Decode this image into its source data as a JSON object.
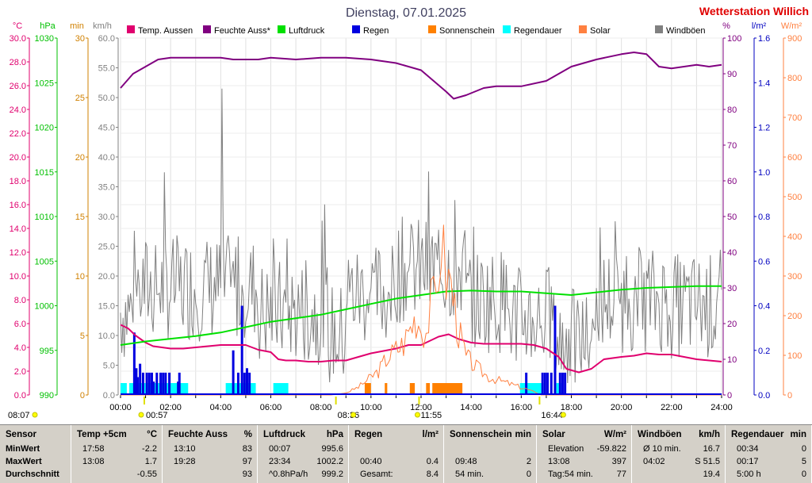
{
  "title": "Dienstag, 07.01.2025",
  "station": "Wetterstation Willich",
  "axes": {
    "left": [
      {
        "unit": "°C",
        "color": "#e0006e",
        "ticks": [
          "0.0",
          "2.0",
          "4.0",
          "6.0",
          "8.0",
          "10.0",
          "12.0",
          "14.0",
          "16.0",
          "18.0",
          "20.0",
          "22.0",
          "24.0",
          "26.0",
          "28.0",
          "30.0"
        ]
      },
      {
        "unit": "hPa",
        "color": "#00c000",
        "ticks": [
          "990",
          "995",
          "1000",
          "1005",
          "1010",
          "1015",
          "1020",
          "1025",
          "1030"
        ]
      },
      {
        "unit": "min",
        "color": "#d08000",
        "ticks": [
          "0",
          "5",
          "10",
          "15",
          "20",
          "25",
          "30"
        ]
      },
      {
        "unit": "km/h",
        "color": "#808080",
        "ticks": [
          "0.0",
          "5.0",
          "10.0",
          "15.0",
          "20.0",
          "25.0",
          "30.0",
          "35.0",
          "40.0",
          "45.0",
          "50.0",
          "55.0",
          "60.0"
        ]
      }
    ],
    "right": [
      {
        "unit": "%",
        "color": "#800080",
        "ticks": [
          "0",
          "10",
          "20",
          "30",
          "40",
          "50",
          "60",
          "70",
          "80",
          "90",
          "100"
        ]
      },
      {
        "unit": "l/m²",
        "color": "#0000c0",
        "ticks": [
          "0.0",
          "0.2",
          "0.4",
          "0.6",
          "0.8",
          "1.0",
          "1.2",
          "1.4",
          "1.6"
        ]
      },
      {
        "unit": "W/m²",
        "color": "#ff8040",
        "ticks": [
          "0",
          "100",
          "200",
          "300",
          "400",
          "500",
          "600",
          "700",
          "800",
          "900"
        ]
      }
    ],
    "x_ticks": [
      "00:00",
      "02:00",
      "04:00",
      "06:00",
      "08:00",
      "10:00",
      "12:00",
      "14:00",
      "16:00",
      "18:00",
      "20:00",
      "22:00",
      "24:00"
    ]
  },
  "legend": [
    {
      "label": "Temp. Aussen",
      "color": "#e0006e"
    },
    {
      "label": "Feuchte Auss*",
      "color": "#800080"
    },
    {
      "label": "Luftdruck",
      "color": "#00e000"
    },
    {
      "label": "Regen",
      "color": "#0000e0"
    },
    {
      "label": "Sonnenschein",
      "color": "#ff8000"
    },
    {
      "label": "Regendauer",
      "color": "#00ffff"
    },
    {
      "label": "Solar",
      "color": "#ff8040"
    },
    {
      "label": "Windböen",
      "color": "#808080"
    }
  ],
  "markers": [
    {
      "time": "08:07",
      "hour": -0.3
    },
    {
      "time": "00:57",
      "hour": 0.95
    },
    {
      "time": "08:36",
      "hour": 8.6
    },
    {
      "time": "11:55",
      "hour": 11.92
    },
    {
      "time": "16:44",
      "hour": 16.73
    }
  ],
  "chart_data": {
    "type": "line",
    "x_range_hours": [
      0,
      24
    ],
    "series": [
      {
        "name": "Temp. Aussen",
        "axis": "°C",
        "ylim": [
          0,
          30
        ],
        "points": [
          [
            0,
            5.9
          ],
          [
            0.3,
            5.6
          ],
          [
            0.6,
            5.0
          ],
          [
            1,
            4.4
          ],
          [
            1.3,
            4.1
          ],
          [
            2,
            3.9
          ],
          [
            2.5,
            3.9
          ],
          [
            3,
            4.0
          ],
          [
            3.5,
            4.1
          ],
          [
            4,
            4.2
          ],
          [
            4.5,
            4.2
          ],
          [
            5,
            4.2
          ],
          [
            5.5,
            3.8
          ],
          [
            6,
            3.6
          ],
          [
            6.3,
            3.0
          ],
          [
            6.6,
            2.9
          ],
          [
            7,
            2.9
          ],
          [
            7.5,
            2.8
          ],
          [
            8,
            2.8
          ],
          [
            8.5,
            2.9
          ],
          [
            9,
            2.9
          ],
          [
            9.5,
            3.2
          ],
          [
            10,
            3.5
          ],
          [
            10.5,
            3.7
          ],
          [
            11,
            3.9
          ],
          [
            11.5,
            4.2
          ],
          [
            12,
            4.2
          ],
          [
            12.3,
            4.5
          ],
          [
            12.7,
            4.9
          ],
          [
            13.1,
            5.1
          ],
          [
            13.5,
            4.7
          ],
          [
            14,
            4.4
          ],
          [
            14.5,
            4.3
          ],
          [
            15,
            4.3
          ],
          [
            15.5,
            4.3
          ],
          [
            16,
            4.3
          ],
          [
            16.5,
            4.2
          ],
          [
            17,
            3.9
          ],
          [
            17.5,
            3.2
          ],
          [
            17.8,
            2.2
          ],
          [
            18.3,
            1.9
          ],
          [
            18.8,
            2.2
          ],
          [
            19.3,
            3.0
          ],
          [
            20,
            3.2
          ],
          [
            20.5,
            3.3
          ],
          [
            21,
            3.5
          ],
          [
            21.5,
            3.4
          ],
          [
            22,
            3.4
          ],
          [
            22.5,
            3.2
          ],
          [
            23,
            3.0
          ],
          [
            23.5,
            2.9
          ],
          [
            24,
            2.8
          ]
        ]
      },
      {
        "name": "Feuchte Auss*",
        "axis": "%",
        "ylim": [
          0,
          100
        ],
        "points": [
          [
            0,
            86
          ],
          [
            0.5,
            90
          ],
          [
            1,
            92
          ],
          [
            1.5,
            94
          ],
          [
            2,
            94.5
          ],
          [
            3,
            94.5
          ],
          [
            4,
            94.5
          ],
          [
            4.5,
            94
          ],
          [
            5,
            94
          ],
          [
            5.5,
            94
          ],
          [
            6,
            94.5
          ],
          [
            7,
            94
          ],
          [
            8,
            94.5
          ],
          [
            9,
            94.5
          ],
          [
            10,
            94
          ],
          [
            11,
            93
          ],
          [
            12,
            91
          ],
          [
            12.5,
            88
          ],
          [
            13,
            85
          ],
          [
            13.3,
            83
          ],
          [
            13.8,
            84
          ],
          [
            14.5,
            86
          ],
          [
            15,
            86.5
          ],
          [
            16,
            86.5
          ],
          [
            17,
            88
          ],
          [
            17.5,
            90
          ],
          [
            18,
            92
          ],
          [
            19,
            94
          ],
          [
            20,
            95.5
          ],
          [
            20.5,
            96
          ],
          [
            21,
            95.5
          ],
          [
            21.5,
            92
          ],
          [
            22,
            91.5
          ],
          [
            22.5,
            92
          ],
          [
            23,
            92.5
          ],
          [
            23.5,
            92
          ],
          [
            24,
            92.5
          ]
        ]
      },
      {
        "name": "Luftdruck",
        "axis": "hPa",
        "ylim": [
          990,
          1030
        ],
        "points": [
          [
            0,
            995.6
          ],
          [
            0.5,
            995.8
          ],
          [
            1,
            996.0
          ],
          [
            2,
            996.3
          ],
          [
            3,
            996.6
          ],
          [
            4,
            997.0
          ],
          [
            5,
            997.6
          ],
          [
            6,
            998.2
          ],
          [
            7,
            998.6
          ],
          [
            8,
            999.0
          ],
          [
            9,
            999.6
          ],
          [
            10,
            1000.2
          ],
          [
            11,
            1000.8
          ],
          [
            12,
            1001.2
          ],
          [
            13,
            1001.6
          ],
          [
            14,
            1001.7
          ],
          [
            15,
            1001.6
          ],
          [
            16,
            1001.6
          ],
          [
            17,
            1001.4
          ],
          [
            18,
            1001.2
          ],
          [
            19,
            1001.5
          ],
          [
            20,
            1001.8
          ],
          [
            21,
            1002.0
          ],
          [
            22,
            1002.1
          ],
          [
            23,
            1002.2
          ],
          [
            24,
            1002.2
          ]
        ]
      },
      {
        "name": "Solar",
        "axis": "W/m²",
        "ylim": [
          0,
          900
        ],
        "points": [
          [
            0,
            0
          ],
          [
            8.4,
            0
          ],
          [
            9.0,
            5
          ],
          [
            9.5,
            20
          ],
          [
            10.0,
            45
          ],
          [
            10.3,
            60
          ],
          [
            10.6,
            90
          ],
          [
            11.0,
            115
          ],
          [
            11.3,
            130
          ],
          [
            11.5,
            160
          ],
          [
            11.8,
            200
          ],
          [
            12.0,
            175
          ],
          [
            12.2,
            160
          ],
          [
            12.4,
            230
          ],
          [
            12.6,
            250
          ],
          [
            12.8,
            397
          ],
          [
            13.0,
            300
          ],
          [
            13.2,
            280
          ],
          [
            13.5,
            160
          ],
          [
            13.8,
            95
          ],
          [
            14.2,
            70
          ],
          [
            14.7,
            45
          ],
          [
            15.2,
            35
          ],
          [
            15.7,
            25
          ],
          [
            16.2,
            15
          ],
          [
            16.6,
            5
          ],
          [
            16.8,
            0
          ],
          [
            24,
            0
          ]
        ]
      },
      {
        "name": "Windböen",
        "axis": "km/h",
        "ylim": [
          0,
          60
        ],
        "note_max": 51.5
      }
    ],
    "regen_bars_hour": [
      0.55,
      0.63,
      0.68,
      0.78,
      0.9,
      1.05,
      1.15,
      1.25,
      1.32,
      1.45,
      1.6,
      1.7,
      1.8,
      1.95,
      2.3,
      2.35,
      4.5,
      4.7,
      4.85,
      4.95,
      5.05,
      5.15,
      16.2,
      16.85,
      16.95,
      17.05,
      17.2,
      17.35,
      17.55,
      17.65,
      17.75
    ],
    "sonnenschein_segments": [
      [
        9.75,
        10.0
      ],
      [
        10.55,
        10.65
      ],
      [
        11.55,
        11.75
      ],
      [
        12.2,
        12.35
      ],
      [
        12.45,
        13.65
      ]
    ],
    "regendauer_segments": [
      [
        0.0,
        0.25
      ],
      [
        0.35,
        1.0
      ],
      [
        1.0,
        2.7
      ],
      [
        4.2,
        5.4
      ],
      [
        6.1,
        6.7
      ],
      [
        15.95,
        16.9
      ],
      [
        17.4,
        17.6
      ]
    ]
  },
  "table": {
    "cols": [
      {
        "head": "Sensor",
        "unit": "",
        "rows": [
          [
            "MinWert",
            ""
          ],
          [
            "MaxWert",
            ""
          ],
          [
            "Durchschnitt",
            ""
          ]
        ]
      },
      {
        "head": "Temp +5cm",
        "unit": "°C",
        "rows": [
          [
            "17:58",
            "-2.2"
          ],
          [
            "13:08",
            "1.7"
          ],
          [
            "",
            "-0.55"
          ]
        ]
      },
      {
        "head": "Feuchte Auss",
        "unit": "%",
        "rows": [
          [
            "13:10",
            "83"
          ],
          [
            "19:28",
            "97"
          ],
          [
            "",
            "93"
          ]
        ]
      },
      {
        "head": "Luftdruck",
        "unit": "hPa",
        "rows": [
          [
            "00:07",
            "995.6"
          ],
          [
            "23:34",
            "1002.2"
          ],
          [
            "^0.8hPa/h",
            "999.2"
          ]
        ]
      },
      {
        "head": "Regen",
        "unit": "l/m²",
        "rows": [
          [
            "",
            ""
          ],
          [
            "00:40",
            "0.4"
          ],
          [
            "Gesamt:",
            "8.4"
          ]
        ]
      },
      {
        "head": "Sonnenschein",
        "unit": "min",
        "rows": [
          [
            "",
            ""
          ],
          [
            "09:48",
            "2"
          ],
          [
            "54 min.",
            "0"
          ]
        ]
      },
      {
        "head": "Solar",
        "unit": "W/m²",
        "rows": [
          [
            "Elevation",
            "-59.822"
          ],
          [
            "13:08",
            "397"
          ],
          [
            "Tag:54 min.",
            "77"
          ]
        ]
      },
      {
        "head": "Windböen",
        "unit": "km/h",
        "rows": [
          [
            "Ø 10 min.",
            "16.7"
          ],
          [
            "04:02",
            "S 51.5"
          ],
          [
            "",
            "19.4"
          ]
        ]
      },
      {
        "head": "Regendauer",
        "unit": "min",
        "rows": [
          [
            "00:34",
            "0"
          ],
          [
            "00:17",
            "5"
          ],
          [
            "5:00 h",
            "0"
          ]
        ]
      }
    ]
  }
}
